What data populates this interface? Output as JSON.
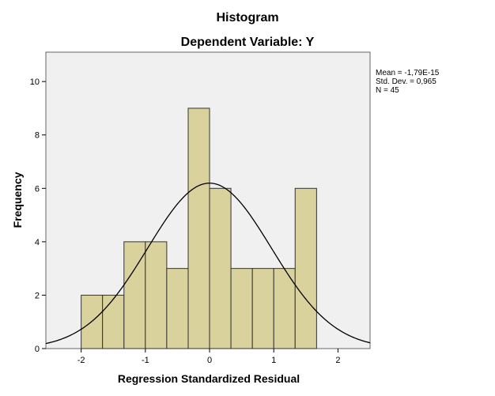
{
  "chart_data": {
    "type": "histogram",
    "title": "Histogram",
    "subtitle": "Dependent Variable: Y",
    "xlabel": "Regression Standardized Residual",
    "ylabel": "Frequency",
    "xlim": [
      -2.55,
      2.5
    ],
    "ylim": [
      0,
      11.1
    ],
    "x_ticks": [
      -2,
      -1,
      0,
      1,
      2
    ],
    "y_ticks": [
      0,
      2,
      4,
      6,
      8,
      10
    ],
    "x_tick_labels": [
      "-2",
      "-1",
      "0",
      "1",
      "2"
    ],
    "y_tick_labels": [
      "0",
      "2",
      "4",
      "6",
      "8",
      "10"
    ],
    "bins": [
      {
        "start": -2.0,
        "end": -1.667,
        "count": 2
      },
      {
        "start": -1.667,
        "end": -1.333,
        "count": 2
      },
      {
        "start": -1.333,
        "end": -1.0,
        "count": 4
      },
      {
        "start": -1.0,
        "end": -0.667,
        "count": 4
      },
      {
        "start": -0.667,
        "end": -0.333,
        "count": 3
      },
      {
        "start": -0.333,
        "end": 0.0,
        "count": 9
      },
      {
        "start": 0.0,
        "end": 0.333,
        "count": 6
      },
      {
        "start": 0.333,
        "end": 0.667,
        "count": 3
      },
      {
        "start": 0.667,
        "end": 1.0,
        "count": 3
      },
      {
        "start": 1.0,
        "end": 1.333,
        "count": 3
      },
      {
        "start": 1.333,
        "end": 1.667,
        "count": 6
      }
    ],
    "normal_curve": {
      "mean": 0,
      "std_dev": 0.965,
      "n": 45,
      "bin_width": 0.333
    },
    "stats": [
      "Mean = -1,79E-15",
      "Std. Dev. = 0,965",
      "N = 45"
    ],
    "legend_position": "right",
    "colors": {
      "bar_fill": "#d9d29c",
      "bar_stroke": "#333333",
      "plot_bg": "#f0f0f0",
      "curve": "#000000"
    }
  }
}
